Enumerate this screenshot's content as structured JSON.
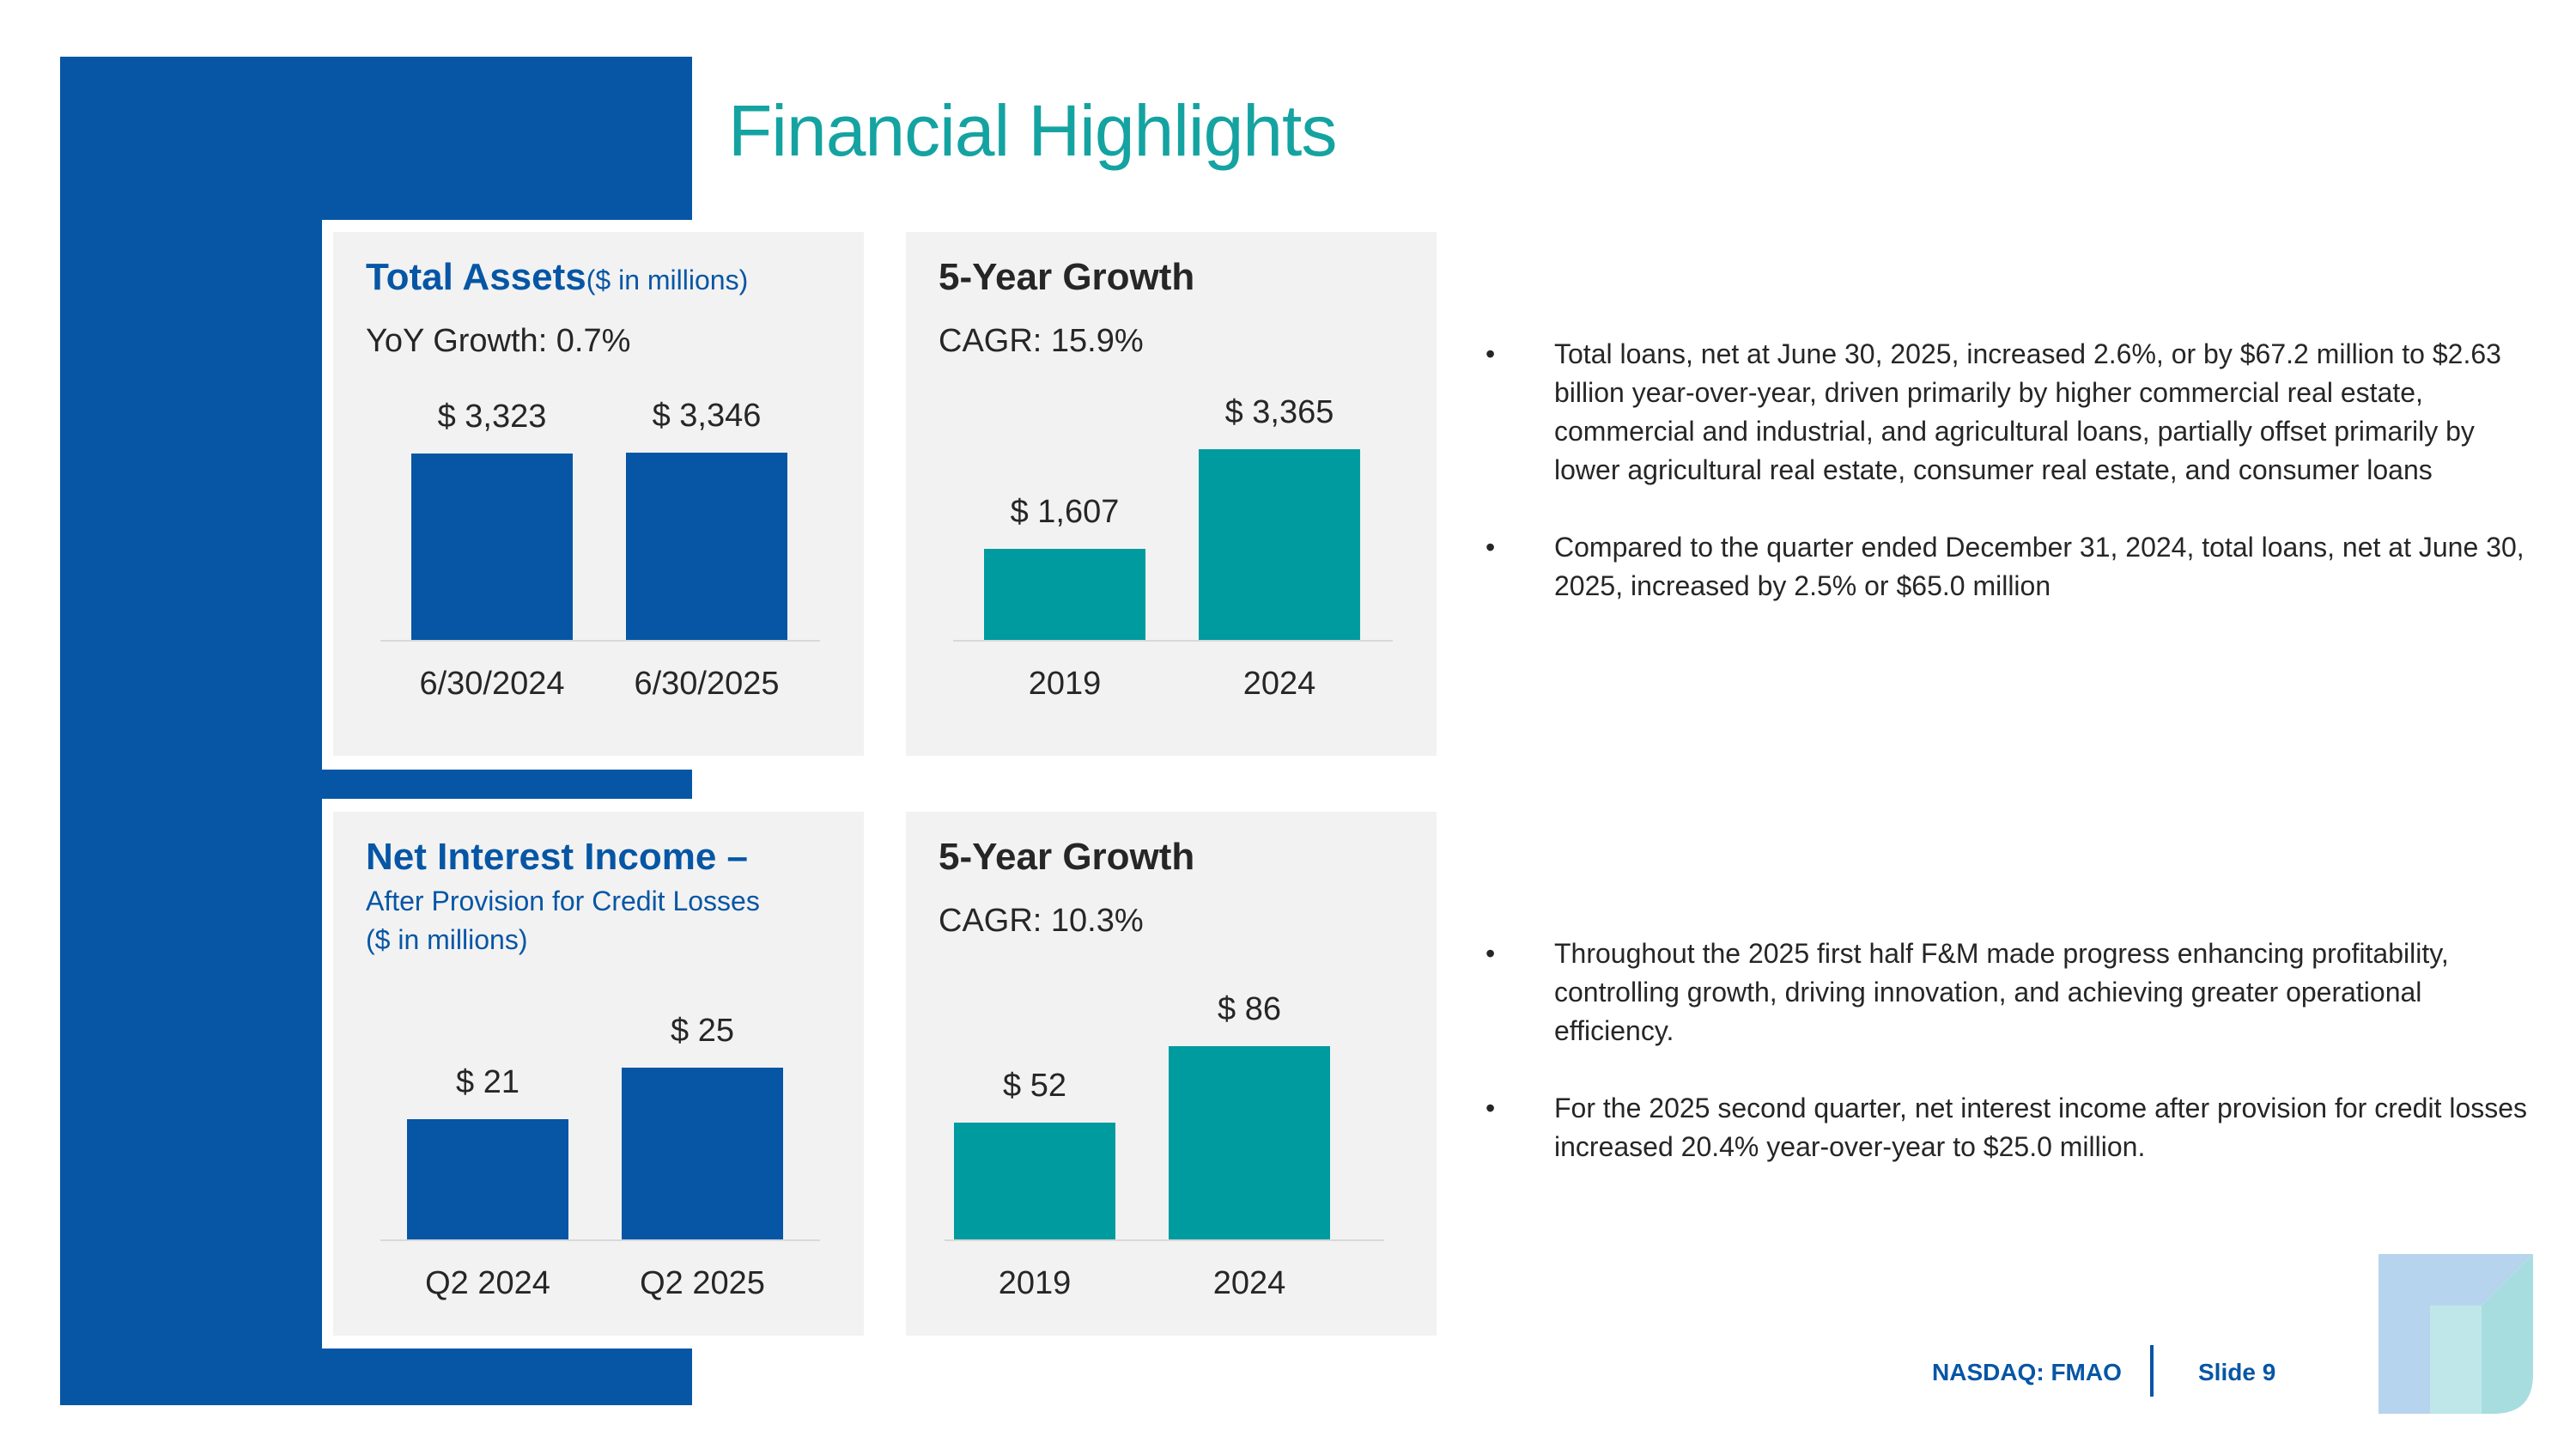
{
  "title": "Financial Highlights",
  "cards": {
    "total_assets": {
      "heading": "Total Assets",
      "heading_note": "($ in millions)",
      "subheading": "YoY Growth: 0.7%"
    },
    "growth_assets": {
      "heading": "5-Year Growth",
      "subheading": "CAGR: 15.9%"
    },
    "nii": {
      "heading": "Net Interest Income –",
      "line2": "After Provision for Credit Losses",
      "line3": "($ in millions)"
    },
    "growth_nii": {
      "heading": "5-Year Growth",
      "subheading": "CAGR: 10.3%"
    }
  },
  "chart_data": [
    {
      "type": "bar",
      "title": "Total Assets ($ in millions)",
      "categories": [
        "6/30/2024",
        "6/30/2025"
      ],
      "values": [
        3323,
        3346
      ],
      "labels": [
        "$ 3,323",
        "$ 3,346"
      ],
      "color": "#0656a5"
    },
    {
      "type": "bar",
      "title": "5-Year Growth",
      "categories": [
        "2019",
        "2024"
      ],
      "values": [
        1607,
        3365
      ],
      "labels": [
        "$ 1,607",
        "$ 3,365"
      ],
      "color": "#009b9f"
    },
    {
      "type": "bar",
      "title": "Net Interest Income – After Provision for Credit Losses ($ in millions)",
      "categories": [
        "Q2 2024",
        "Q2 2025"
      ],
      "values": [
        21,
        25
      ],
      "labels": [
        "$ 21",
        "$ 25"
      ],
      "color": "#0656a5"
    },
    {
      "type": "bar",
      "title": "5-Year Growth",
      "categories": [
        "2019",
        "2024"
      ],
      "values": [
        52,
        86
      ],
      "labels": [
        "$ 52",
        "$ 86"
      ],
      "color": "#009b9f"
    }
  ],
  "bullets_top": [
    "Total loans, net at June 30, 2025, increased 2.6%, or by $67.2 million to $2.63 billion year-over-year, driven primarily by higher commercial real estate, commercial and industrial, and agricultural loans, partially offset primarily by lower agricultural real estate, consumer real estate, and consumer loans",
    "Compared to the quarter ended December 31, 2024, total loans, net at June 30, 2025, increased by 2.5% or $65.0 million"
  ],
  "bullets_bottom": [
    "Throughout the 2025 first half F&M made progress enhancing profitability, controlling growth, driving innovation, and achieving greater operational efficiency.",
    "For the 2025 second quarter, net interest income after provision for credit losses increased 20.4% year-over-year to $25.0 million."
  ],
  "bullet_glyph": "•",
  "footer": {
    "ticker": "NASDAQ: FMAO",
    "slide": "Slide 9"
  },
  "colors": {
    "brand_blue": "#0656a5",
    "teal": "#009b9f",
    "title_teal": "#14a3a1"
  },
  "logo_icon": "fm-logo-icon"
}
